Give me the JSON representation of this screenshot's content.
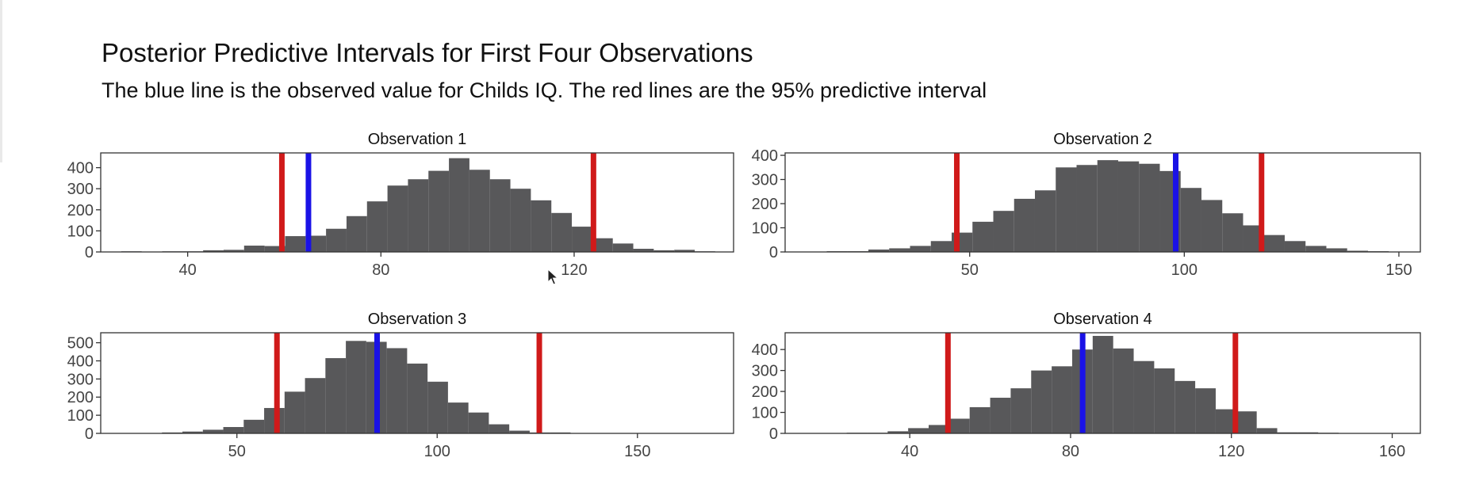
{
  "title": "Posterior Predictive Intervals for First Four Observations",
  "subtitle": "The blue line is the observed value for Childs IQ. The red lines are the 95% predictive interval",
  "colors": {
    "bars": "#58585a",
    "observed_line": "#1a12e6",
    "interval_lines": "#d01a1a",
    "panel_border": "#333333",
    "text": "#111111"
  },
  "chart_data": [
    {
      "type": "histogram",
      "title": "Observation 1",
      "xlim": [
        22,
        153
      ],
      "ylim": [
        0,
        470
      ],
      "x_ticks": [
        40,
        80,
        120
      ],
      "y_ticks": [
        0,
        100,
        200,
        300,
        400
      ],
      "bin_width": 4.24,
      "bin_start": 22,
      "counts": [
        0,
        3,
        0,
        3,
        3,
        8,
        10,
        30,
        28,
        75,
        77,
        110,
        170,
        240,
        315,
        345,
        385,
        445,
        390,
        345,
        300,
        245,
        185,
        120,
        65,
        40,
        15,
        8,
        10,
        3,
        0
      ],
      "observed_value": 65,
      "interval": [
        59.5,
        124
      ]
    },
    {
      "type": "histogram",
      "title": "Observation 2",
      "xlim": [
        7,
        155
      ],
      "ylim": [
        0,
        410
      ],
      "x_ticks": [
        50,
        100,
        150
      ],
      "y_ticks": [
        0,
        100,
        200,
        300,
        400
      ],
      "bin_width": 4.85,
      "bin_start": 7,
      "counts": [
        0,
        1,
        3,
        3,
        10,
        15,
        25,
        45,
        80,
        125,
        170,
        220,
        255,
        350,
        360,
        380,
        375,
        365,
        335,
        265,
        215,
        160,
        110,
        70,
        45,
        25,
        15,
        5,
        3,
        0
      ],
      "observed_value": 98,
      "interval": [
        47,
        118
      ]
    },
    {
      "type": "histogram",
      "title": "Observation 3",
      "xlim": [
        16,
        174
      ],
      "ylim": [
        0,
        555
      ],
      "x_ticks": [
        50,
        100,
        150
      ],
      "y_ticks": [
        0,
        100,
        200,
        300,
        400,
        500
      ],
      "bin_width": 5.1,
      "bin_start": 16,
      "counts": [
        0,
        0,
        2,
        5,
        10,
        20,
        35,
        75,
        140,
        230,
        305,
        415,
        510,
        505,
        470,
        385,
        285,
        170,
        115,
        50,
        15,
        5,
        5,
        0,
        0,
        0,
        0,
        0,
        0,
        0,
        0
      ],
      "observed_value": 85,
      "interval": [
        60,
        125.5
      ]
    },
    {
      "type": "histogram",
      "title": "Observation 4",
      "xlim": [
        9,
        167
      ],
      "ylim": [
        0,
        480
      ],
      "x_ticks": [
        40,
        80,
        120,
        160
      ],
      "y_ticks": [
        0,
        100,
        200,
        300,
        400
      ],
      "bin_width": 5.1,
      "bin_start": 9,
      "counts": [
        0,
        0,
        0,
        3,
        3,
        10,
        25,
        40,
        70,
        125,
        170,
        215,
        300,
        320,
        400,
        465,
        405,
        345,
        310,
        250,
        215,
        115,
        105,
        25,
        5,
        5,
        3,
        0,
        0,
        0,
        0
      ],
      "observed_value": 83,
      "interval": [
        49.5,
        121
      ]
    }
  ]
}
